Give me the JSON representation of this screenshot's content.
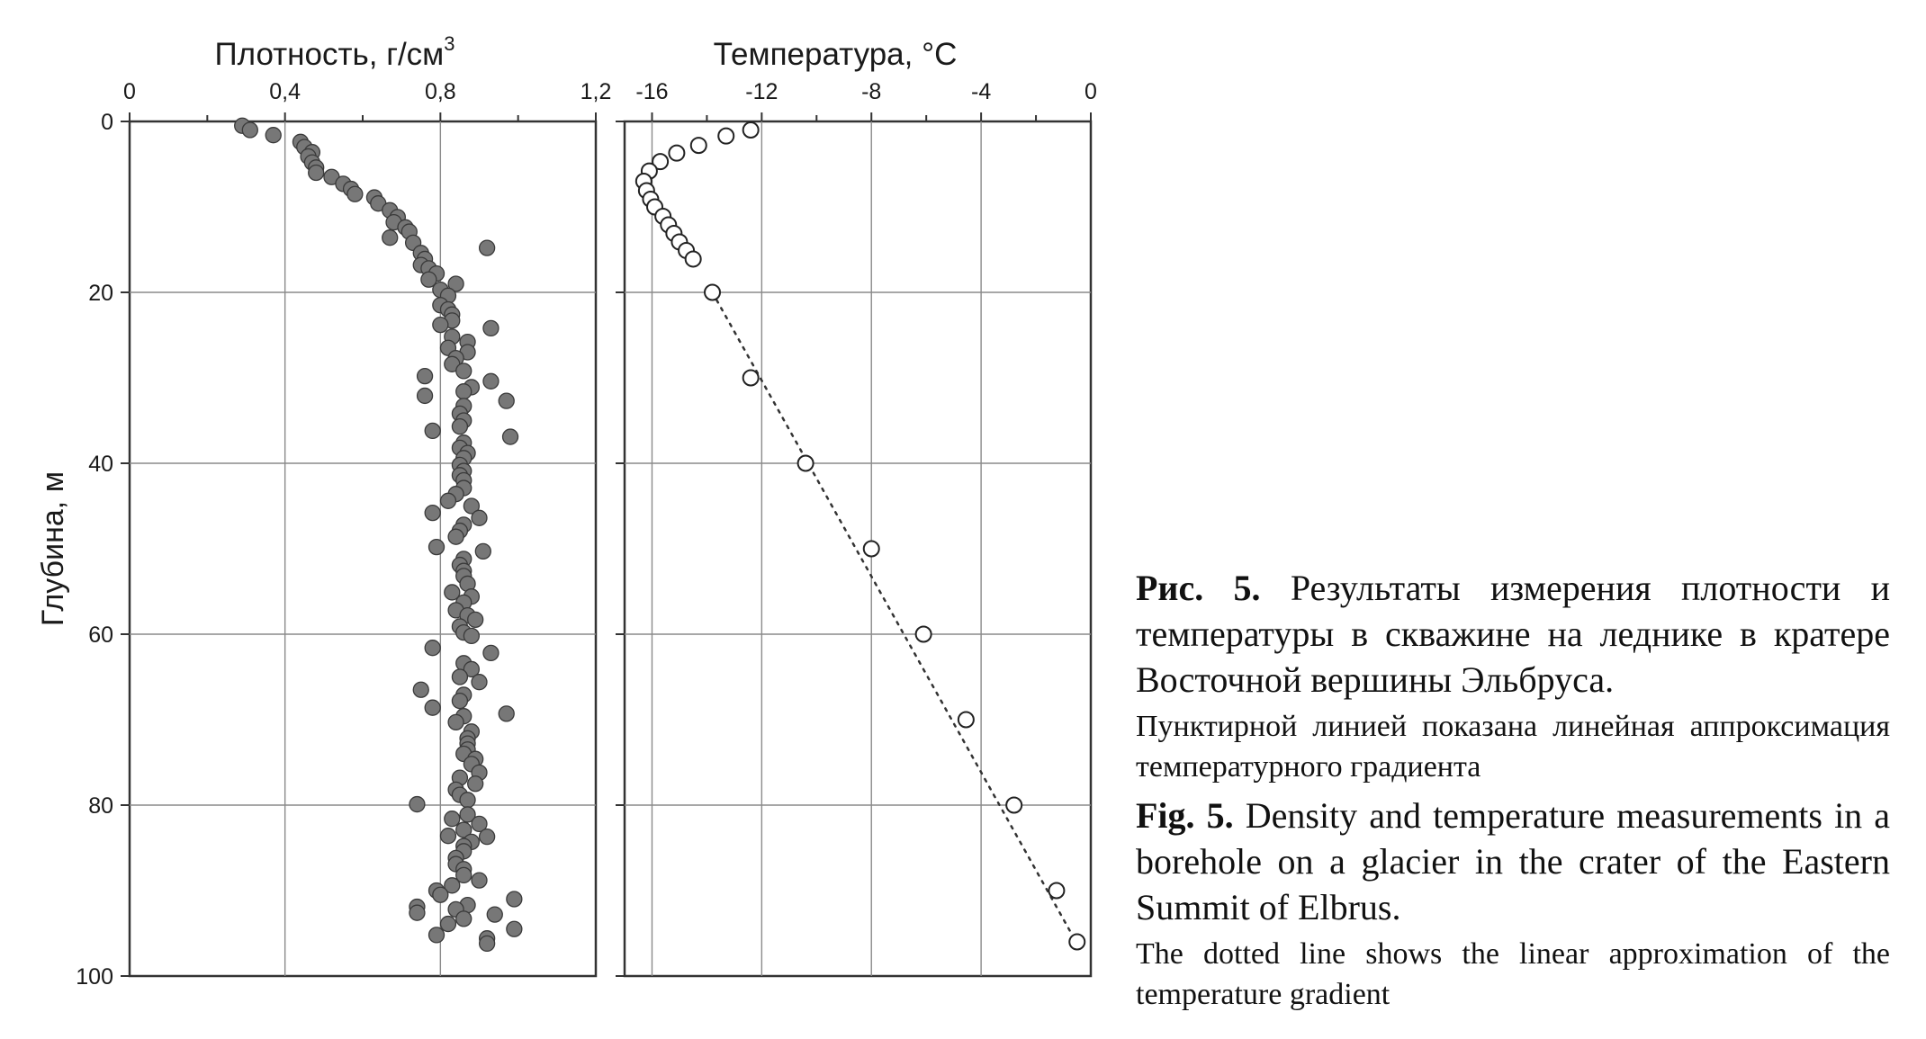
{
  "chart_data": [
    {
      "type": "scatter",
      "title": "",
      "xlabel": "Плотность, г/см",
      "xlabel_sup": "3",
      "ylabel": "Глубина, м",
      "xlim": [
        0,
        1.2
      ],
      "ylim": [
        0,
        100
      ],
      "y_inverted": true,
      "x_ticks": [
        "0",
        "0,4",
        "0,8",
        "1,2"
      ],
      "y_ticks": [
        "0",
        "20",
        "40",
        "60",
        "80",
        "100"
      ],
      "grid": true,
      "marker": "filled-circle",
      "marker_color": "#777777",
      "points": [
        [
          0.29,
          0.5
        ],
        [
          0.31,
          1
        ],
        [
          0.37,
          1.6
        ],
        [
          0.44,
          2.4
        ],
        [
          0.45,
          3
        ],
        [
          0.47,
          3.6
        ],
        [
          0.46,
          4.1
        ],
        [
          0.47,
          4.8
        ],
        [
          0.48,
          5.4
        ],
        [
          0.48,
          6
        ],
        [
          0.52,
          6.5
        ],
        [
          0.55,
          7.3
        ],
        [
          0.57,
          7.9
        ],
        [
          0.58,
          8.5
        ],
        [
          0.63,
          8.9
        ],
        [
          0.64,
          9.6
        ],
        [
          0.67,
          10.4
        ],
        [
          0.69,
          11.2
        ],
        [
          0.68,
          11.8
        ],
        [
          0.71,
          12.4
        ],
        [
          0.72,
          12.9
        ],
        [
          0.67,
          13.6
        ],
        [
          0.73,
          14.2
        ],
        [
          0.92,
          14.8
        ],
        [
          0.75,
          15.4
        ],
        [
          0.76,
          16.1
        ],
        [
          0.75,
          16.8
        ],
        [
          0.77,
          17.2
        ],
        [
          0.79,
          17.8
        ],
        [
          0.77,
          18.5
        ],
        [
          0.84,
          19
        ],
        [
          0.8,
          19.7
        ],
        [
          0.82,
          20.4
        ],
        [
          0.8,
          21.5
        ],
        [
          0.82,
          22
        ],
        [
          0.83,
          22.6
        ],
        [
          0.83,
          23.3
        ],
        [
          0.8,
          23.8
        ],
        [
          0.93,
          24.2
        ],
        [
          0.83,
          25.2
        ],
        [
          0.87,
          25.8
        ],
        [
          0.82,
          26.5
        ],
        [
          0.87,
          27
        ],
        [
          0.84,
          27.7
        ],
        [
          0.83,
          28.4
        ],
        [
          0.86,
          29.2
        ],
        [
          0.76,
          29.8
        ],
        [
          0.93,
          30.4
        ],
        [
          0.88,
          31.1
        ],
        [
          0.86,
          31.6
        ],
        [
          0.76,
          32.1
        ],
        [
          0.97,
          32.7
        ],
        [
          0.86,
          33.3
        ],
        [
          0.85,
          34.2
        ],
        [
          0.86,
          35
        ],
        [
          0.85,
          35.7
        ],
        [
          0.78,
          36.2
        ],
        [
          0.98,
          36.9
        ],
        [
          0.86,
          37.6
        ],
        [
          0.85,
          38.2
        ],
        [
          0.87,
          38.8
        ],
        [
          0.86,
          39.4
        ],
        [
          0.85,
          40.2
        ],
        [
          0.86,
          40.9
        ],
        [
          0.85,
          41.4
        ],
        [
          0.86,
          42
        ],
        [
          0.86,
          42.9
        ],
        [
          0.84,
          43.6
        ],
        [
          0.82,
          44.4
        ],
        [
          0.88,
          45
        ],
        [
          0.78,
          45.8
        ],
        [
          0.9,
          46.4
        ],
        [
          0.86,
          47.2
        ],
        [
          0.85,
          47.9
        ],
        [
          0.84,
          48.6
        ],
        [
          0.79,
          49.8
        ],
        [
          0.91,
          50.3
        ],
        [
          0.86,
          51.2
        ],
        [
          0.85,
          51.9
        ],
        [
          0.86,
          52.6
        ],
        [
          0.86,
          53.2
        ],
        [
          0.87,
          54.1
        ],
        [
          0.83,
          55.1
        ],
        [
          0.88,
          55.6
        ],
        [
          0.86,
          56.3
        ],
        [
          0.84,
          57.2
        ],
        [
          0.87,
          57.8
        ],
        [
          0.89,
          58.3
        ],
        [
          0.85,
          59.1
        ],
        [
          0.86,
          59.8
        ],
        [
          0.88,
          60.2
        ],
        [
          0.78,
          61.6
        ],
        [
          0.93,
          62.2
        ],
        [
          0.86,
          63.4
        ],
        [
          0.88,
          64.1
        ],
        [
          0.85,
          65
        ],
        [
          0.9,
          65.6
        ],
        [
          0.86,
          67.1
        ],
        [
          0.85,
          67.8
        ],
        [
          0.75,
          66.5
        ],
        [
          0.78,
          68.6
        ],
        [
          0.86,
          69.6
        ],
        [
          0.97,
          69.3
        ],
        [
          0.84,
          70.3
        ],
        [
          0.88,
          71.4
        ],
        [
          0.87,
          72.2
        ],
        [
          0.87,
          72.8
        ],
        [
          0.87,
          73.5
        ],
        [
          0.86,
          74
        ],
        [
          0.89,
          74.6
        ],
        [
          0.88,
          75.2
        ],
        [
          0.9,
          76.2
        ],
        [
          0.85,
          76.8
        ],
        [
          0.89,
          77.5
        ],
        [
          0.84,
          78.2
        ],
        [
          0.85,
          78.8
        ],
        [
          0.87,
          79.4
        ],
        [
          0.74,
          79.9
        ],
        [
          0.87,
          81.1
        ],
        [
          0.83,
          81.6
        ],
        [
          0.9,
          82.2
        ],
        [
          0.86,
          82.9
        ],
        [
          0.82,
          83.6
        ],
        [
          0.92,
          83.7
        ],
        [
          0.88,
          84.3
        ],
        [
          0.86,
          84.8
        ],
        [
          0.86,
          85.4
        ],
        [
          0.84,
          86.2
        ],
        [
          0.84,
          86.9
        ],
        [
          0.86,
          87.5
        ],
        [
          0.86,
          88.2
        ],
        [
          0.9,
          88.8
        ],
        [
          0.83,
          89.4
        ],
        [
          0.79,
          90
        ],
        [
          0.8,
          90.5
        ],
        [
          0.99,
          91
        ],
        [
          0.87,
          91.7
        ],
        [
          0.74,
          91.9
        ],
        [
          0.84,
          92.2
        ],
        [
          0.74,
          92.6
        ],
        [
          0.94,
          92.8
        ],
        [
          0.86,
          93.3
        ],
        [
          0.82,
          93.9
        ],
        [
          0.99,
          94.5
        ],
        [
          0.79,
          95.2
        ],
        [
          0.92,
          95.6
        ],
        [
          0.92,
          96.2
        ]
      ]
    },
    {
      "type": "scatter",
      "title": "",
      "xlabel": "Температура, °C",
      "xlim": [
        -17,
        0
      ],
      "ylim": [
        0,
        100
      ],
      "y_inverted": true,
      "x_ticks": [
        "-16",
        "-12",
        "-8",
        "-4",
        "0"
      ],
      "grid": true,
      "marker": "open-circle",
      "points": [
        [
          -12.4,
          1
        ],
        [
          -13.3,
          1.7
        ],
        [
          -14.3,
          2.8
        ],
        [
          -15.1,
          3.7
        ],
        [
          -15.7,
          4.7
        ],
        [
          -16.1,
          5.8
        ],
        [
          -16.3,
          7
        ],
        [
          -16.2,
          8.1
        ],
        [
          -16.05,
          9.1
        ],
        [
          -15.9,
          10
        ],
        [
          -15.6,
          11.1
        ],
        [
          -15.4,
          12.1
        ],
        [
          -15.2,
          13.1
        ],
        [
          -15,
          14.1
        ],
        [
          -14.75,
          15.1
        ],
        [
          -14.5,
          16.1
        ],
        [
          -13.8,
          20
        ],
        [
          -12.4,
          30
        ],
        [
          -10.4,
          40
        ],
        [
          -8.0,
          50
        ],
        [
          -6.1,
          60
        ],
        [
          -4.55,
          70
        ],
        [
          -2.8,
          80
        ],
        [
          -1.25,
          90
        ],
        [
          -0.5,
          96
        ]
      ],
      "trend_line": {
        "style": "dotted",
        "from": [
          -13.8,
          20
        ],
        "to": [
          -0.45,
          96.5
        ]
      }
    }
  ],
  "caption": {
    "ru_label": "Рис. 5.",
    "ru_title": "Результаты измерения плотности и температуры в скважине на леднике в крате­ре Восточной вершины Эльбруса.",
    "ru_note": "Пунктирной линией показана линейная аппрок­симация температурного градиента",
    "en_label": "Fig. 5.",
    "en_title": "Density and temperature measurements in a borehole on a glacier in the crater of the Eastern Summit of Elbrus.",
    "en_note": "The dotted line shows the linear approximation of the temperature gradient"
  }
}
